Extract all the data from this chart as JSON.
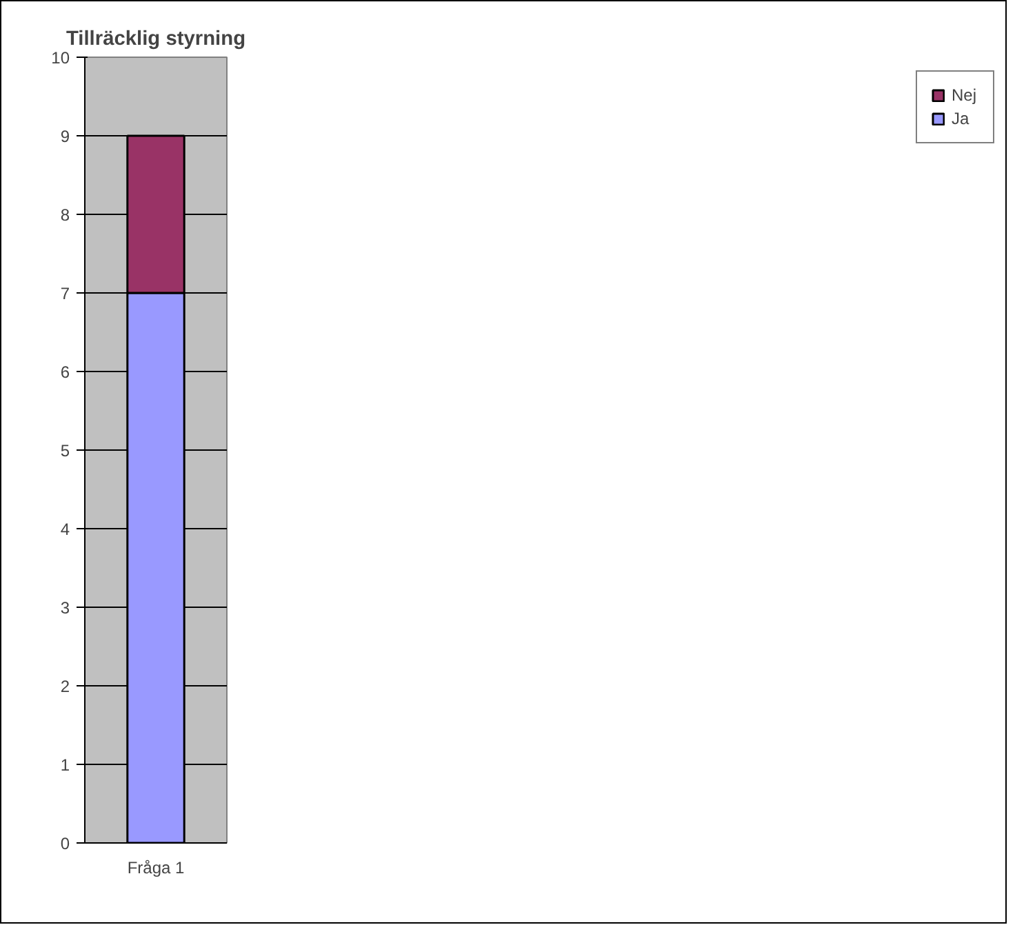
{
  "chart_data": {
    "type": "bar",
    "title": "Tillräcklig styrning",
    "categories": [
      "Fråga 1"
    ],
    "stacked": true,
    "series": [
      {
        "name": "Ja",
        "color": "#9999ff",
        "values": [
          7
        ]
      },
      {
        "name": "Nej",
        "color": "#993366",
        "values": [
          2
        ]
      }
    ],
    "ylim": [
      0,
      10
    ],
    "yticks": [
      0,
      1,
      2,
      3,
      4,
      5,
      6,
      7,
      8,
      9,
      10
    ],
    "grid": "y",
    "legend": "right"
  }
}
